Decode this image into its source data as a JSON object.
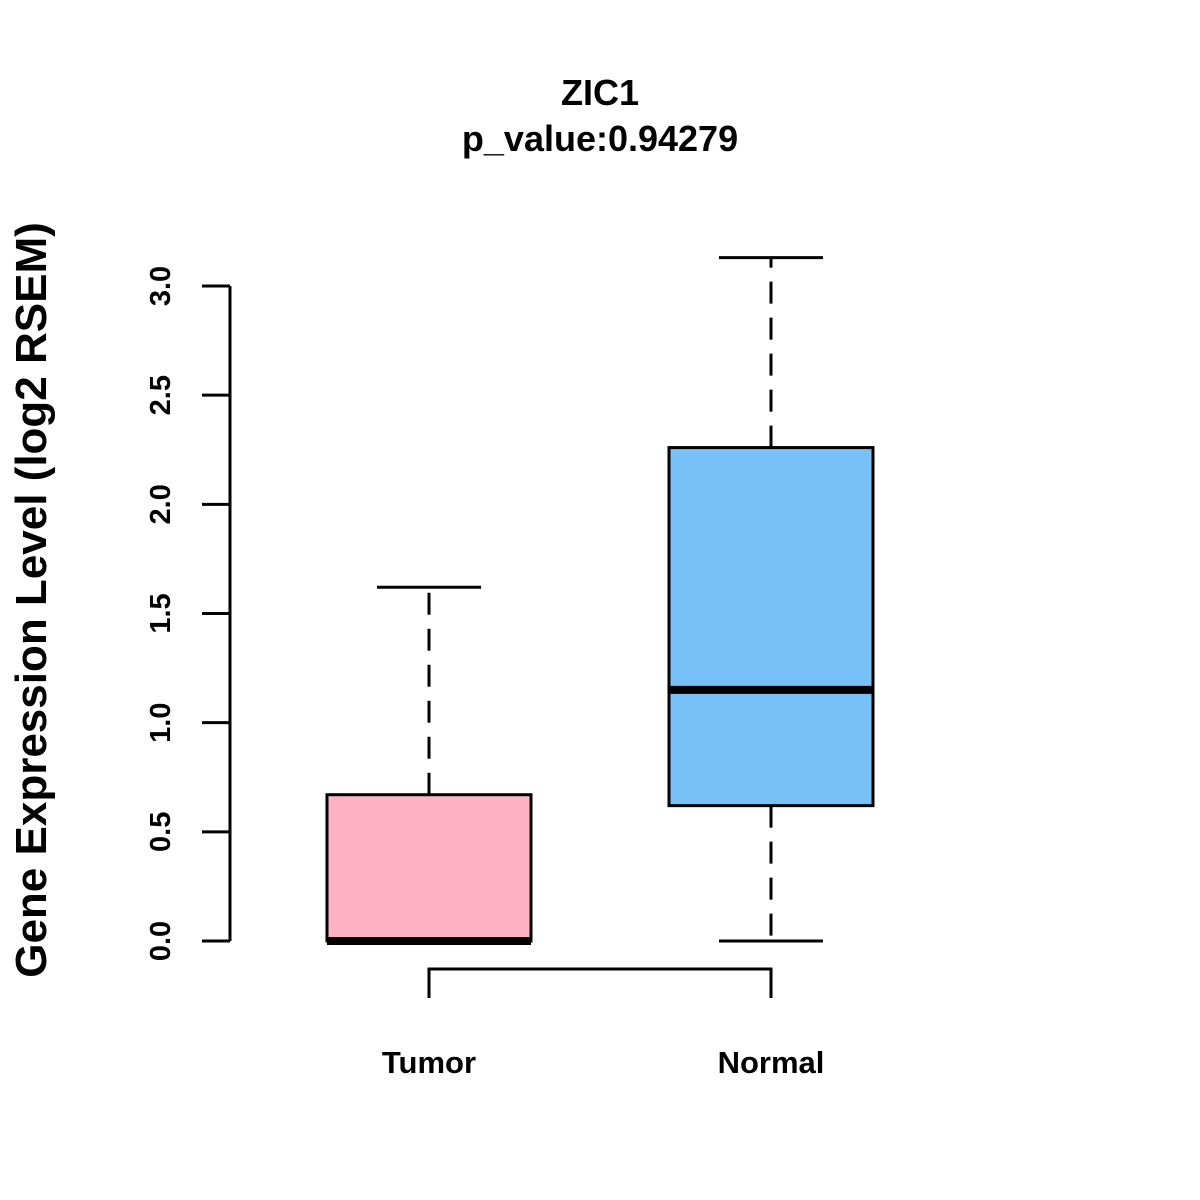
{
  "chart_data": {
    "type": "boxplot",
    "title": "ZIC1",
    "subtitle": "p_value:0.94279",
    "ylabel": "Gene Expression Level (log2 RSEM)",
    "xlabel": "",
    "ylim": [
      0,
      3.0
    ],
    "yticks": [
      0.0,
      0.5,
      1.0,
      1.5,
      2.0,
      2.5,
      3.0
    ],
    "ytick_labels": [
      "0.0",
      "0.5",
      "1.0",
      "1.5",
      "2.0",
      "2.5",
      "3.0"
    ],
    "categories": [
      "Tumor",
      "Normal"
    ],
    "series": [
      {
        "name": "Tumor",
        "whisker_low": 0.0,
        "q1": 0.0,
        "median": 0.0,
        "q3": 0.67,
        "whisker_high": 1.62,
        "color": "#ffb3c4"
      },
      {
        "name": "Normal",
        "whisker_low": 0.0,
        "q1": 0.62,
        "median": 1.15,
        "q3": 2.26,
        "whisker_high": 3.13,
        "color": "#78c0f8"
      }
    ],
    "comparison_bracket": [
      "Tumor",
      "Normal"
    ],
    "grid": false
  }
}
